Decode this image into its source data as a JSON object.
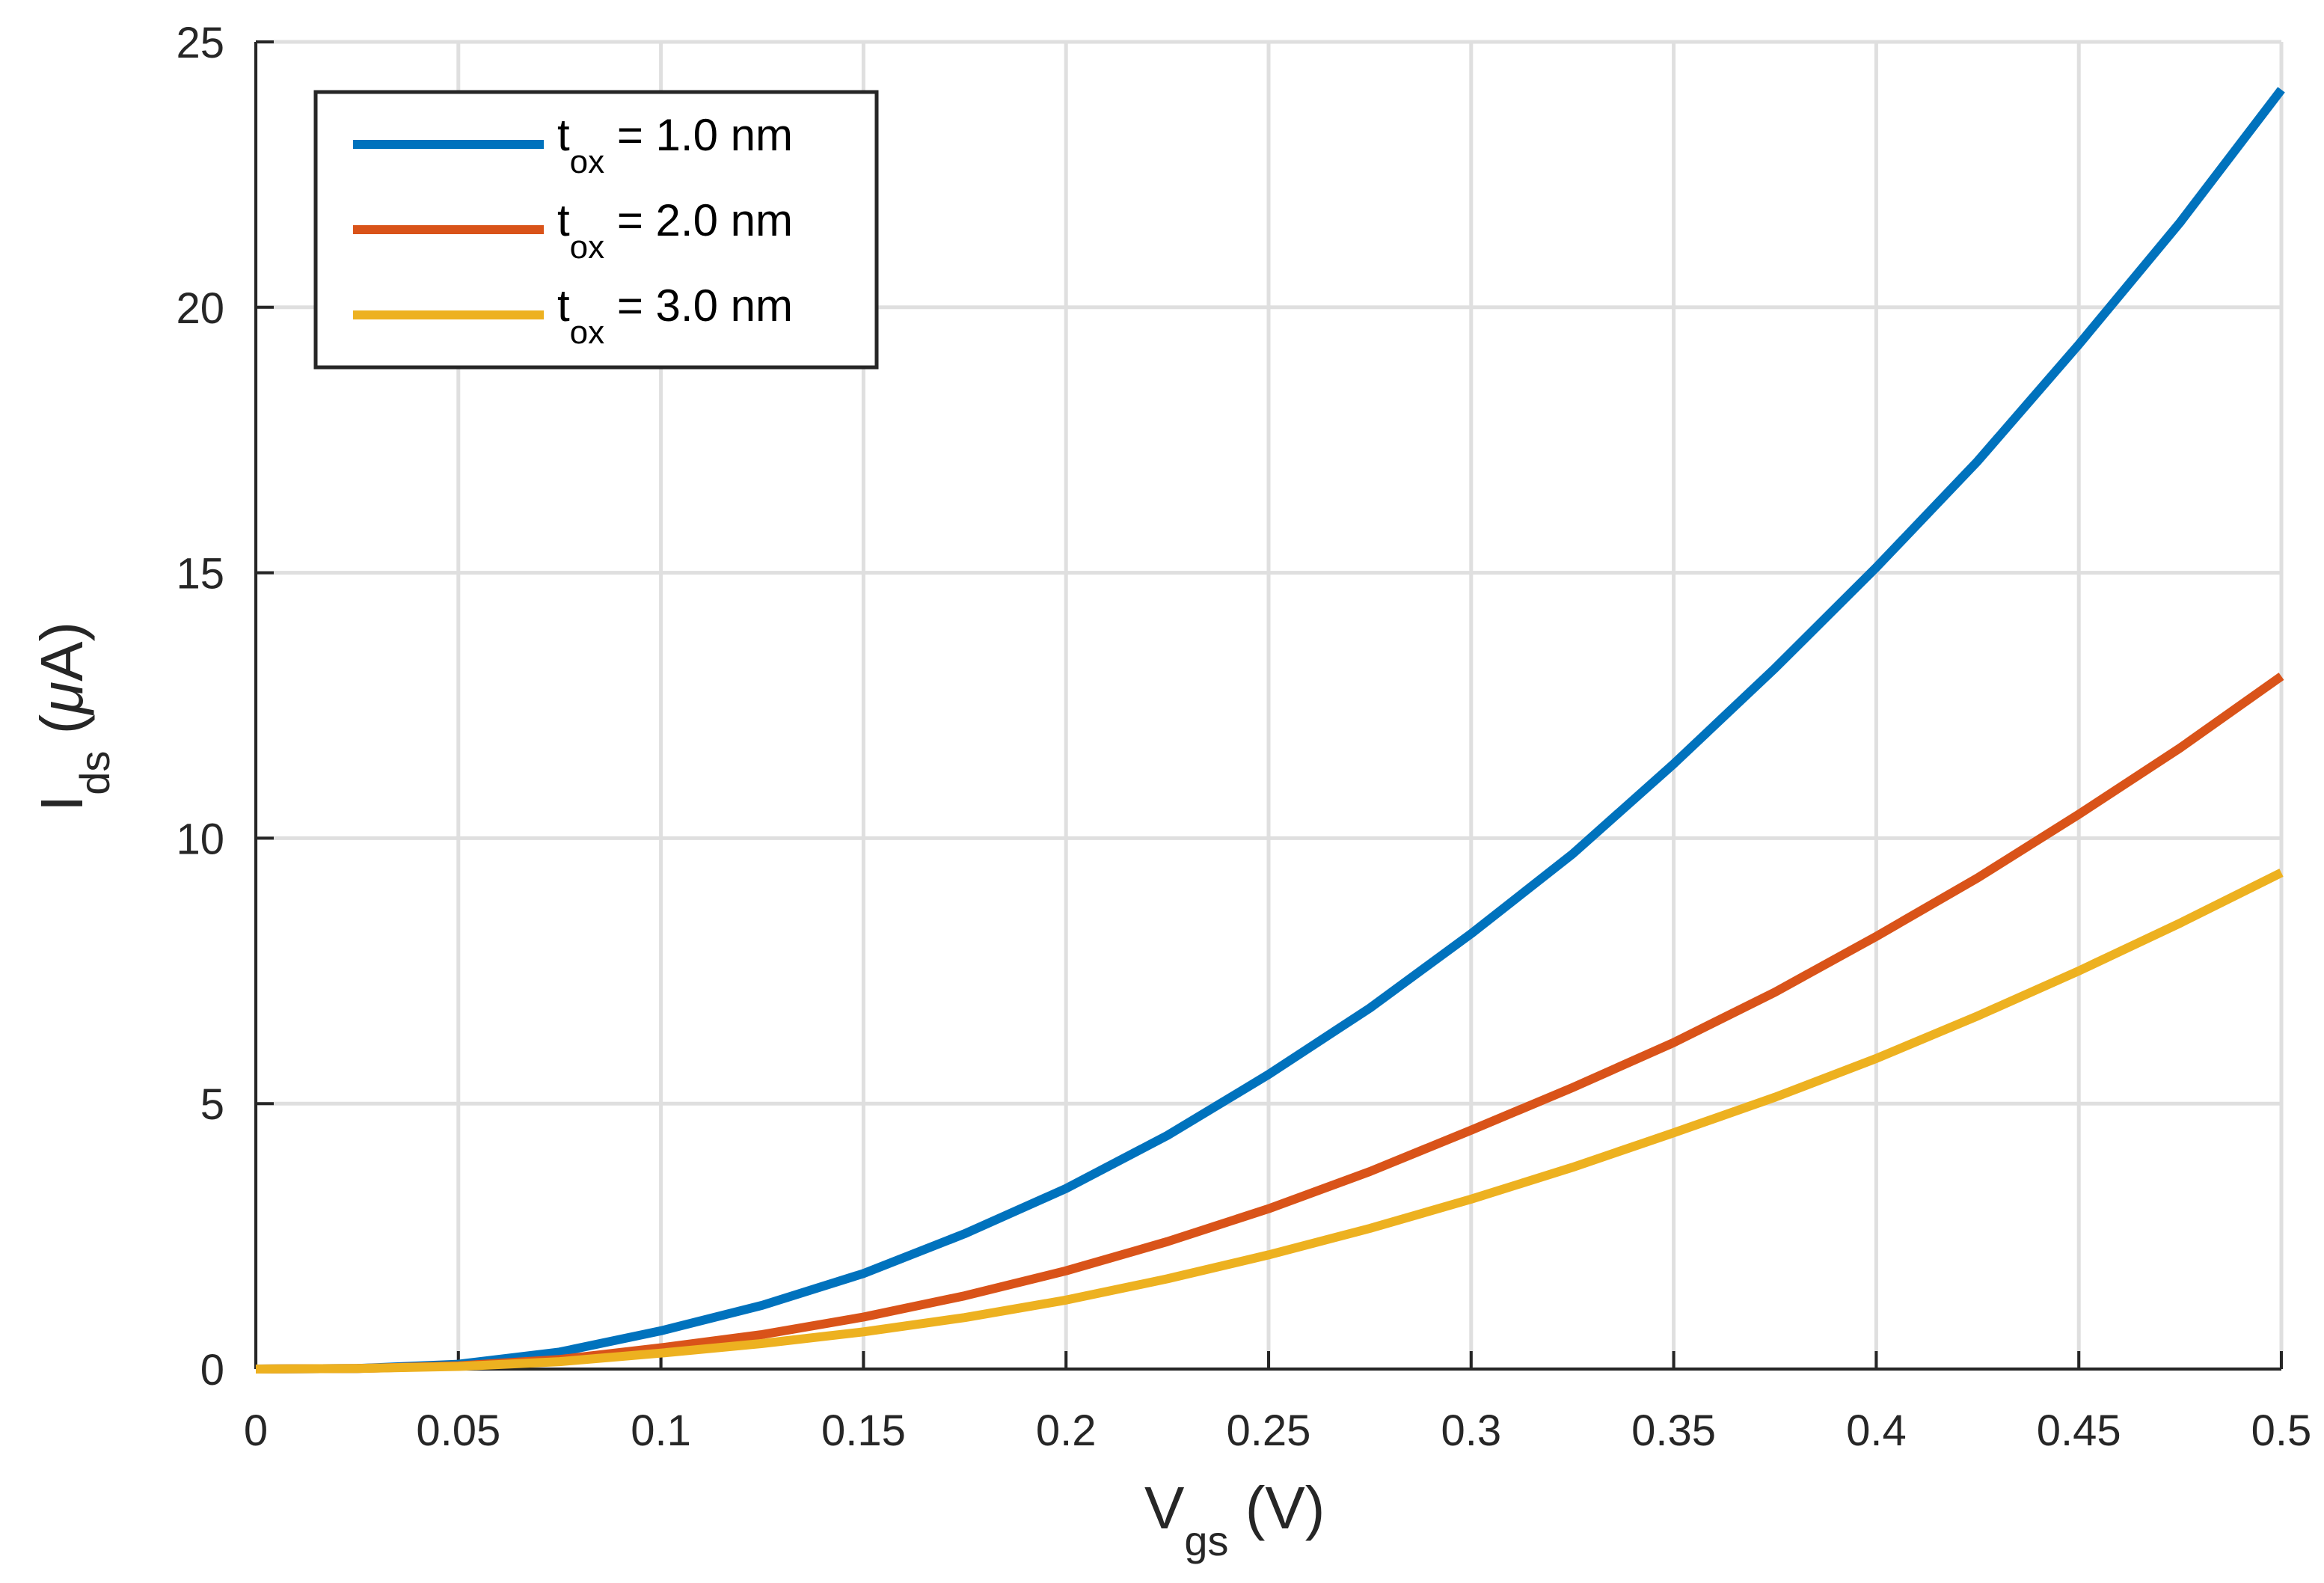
{
  "chart_data": {
    "type": "line",
    "title": "",
    "xlabel": {
      "main": "V",
      "sub": "gs",
      "rest": " (V)"
    },
    "ylabel": {
      "main": "I",
      "sub": "ds",
      "open": " (",
      "mu": "μ",
      "rest": "A)"
    },
    "xlim": [
      0,
      0.5
    ],
    "ylim": [
      0,
      25
    ],
    "xticks": [
      0,
      0.05,
      0.1,
      0.15,
      0.2,
      0.25,
      0.3,
      0.35,
      0.4,
      0.45,
      0.5
    ],
    "xtick_labels": [
      "0",
      "0.05",
      "0.1",
      "0.15",
      "0.2",
      "0.25",
      "0.3",
      "0.35",
      "0.4",
      "0.45",
      "0.5"
    ],
    "yticks": [
      0,
      5,
      10,
      15,
      20,
      25
    ],
    "ytick_labels": [
      "0",
      "5",
      "10",
      "15",
      "20",
      "25"
    ],
    "grid": true,
    "legend_position": "top-left",
    "x": [
      0,
      0.025,
      0.05,
      0.075,
      0.1,
      0.125,
      0.15,
      0.175,
      0.2,
      0.225,
      0.25,
      0.275,
      0.3,
      0.325,
      0.35,
      0.375,
      0.4,
      0.425,
      0.45,
      0.475,
      0.5
    ],
    "series": [
      {
        "name": "tox = 1.0 nm",
        "legend": {
          "main": "t",
          "sub": "ox",
          "rest": " = 1.0 nm"
        },
        "color": "#0072BD",
        "values": [
          0,
          0.01,
          0.09,
          0.32,
          0.72,
          1.2,
          1.8,
          2.55,
          3.4,
          4.4,
          5.55,
          6.8,
          8.2,
          9.7,
          11.4,
          13.2,
          15.1,
          17.1,
          19.3,
          21.6,
          24.1
        ]
      },
      {
        "name": "tox = 2.0 nm",
        "legend": {
          "main": "t",
          "sub": "ox",
          "rest": " = 2.0 nm"
        },
        "color": "#D95319",
        "values": [
          0,
          0.01,
          0.06,
          0.18,
          0.4,
          0.65,
          0.98,
          1.38,
          1.85,
          2.4,
          3.02,
          3.72,
          4.5,
          5.3,
          6.15,
          7.1,
          8.15,
          9.25,
          10.45,
          11.7,
          13.05
        ]
      },
      {
        "name": "tox = 3.0 nm",
        "legend": {
          "main": "t",
          "sub": "ox",
          "rest": " = 3.0 nm"
        },
        "color": "#EDB120",
        "values": [
          0,
          0.01,
          0.05,
          0.14,
          0.3,
          0.48,
          0.7,
          0.97,
          1.3,
          1.7,
          2.15,
          2.65,
          3.2,
          3.8,
          4.45,
          5.12,
          5.85,
          6.65,
          7.5,
          8.4,
          9.35
        ]
      }
    ]
  }
}
